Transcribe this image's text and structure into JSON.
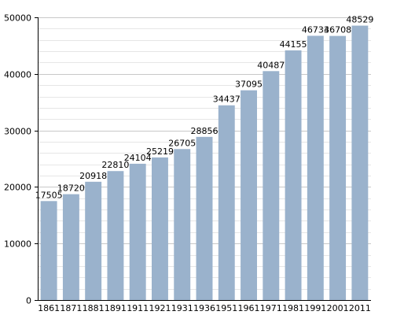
{
  "chart_data": {
    "type": "bar",
    "title": "",
    "xlabel": "",
    "ylabel": "",
    "categories": [
      "1861",
      "1871",
      "1881",
      "1891",
      "1911",
      "1921",
      "1931",
      "1936",
      "1951",
      "1961",
      "1971",
      "1981",
      "1991",
      "2001",
      "2011"
    ],
    "values": [
      17505,
      18720,
      20918,
      22810,
      24104,
      25219,
      26705,
      28856,
      34437,
      37095,
      40487,
      44155,
      46733,
      46708,
      48529
    ],
    "data_labels": [
      "17505",
      "18720",
      "20918",
      "22810",
      "24104",
      "25219",
      "26705",
      "28856",
      "34437",
      "37095",
      "40487",
      "44155",
      "46733",
      "46708",
      "48529"
    ],
    "ylim": [
      0,
      50000
    ],
    "y_ticks": [
      0,
      10000,
      20000,
      30000,
      40000,
      50000
    ],
    "y_tick_labels": [
      "0",
      "10000",
      "20000",
      "30000",
      "40000",
      "50000"
    ],
    "minor_gridline_step": 2000,
    "grid": true,
    "legend": "none",
    "colors": {
      "bar": "#9ab2cc",
      "major_grid": "#c8c8c8",
      "minor_grid": "#e6e6e6",
      "axis": "#000000",
      "text": "#000000",
      "background": "#ffffff"
    }
  }
}
